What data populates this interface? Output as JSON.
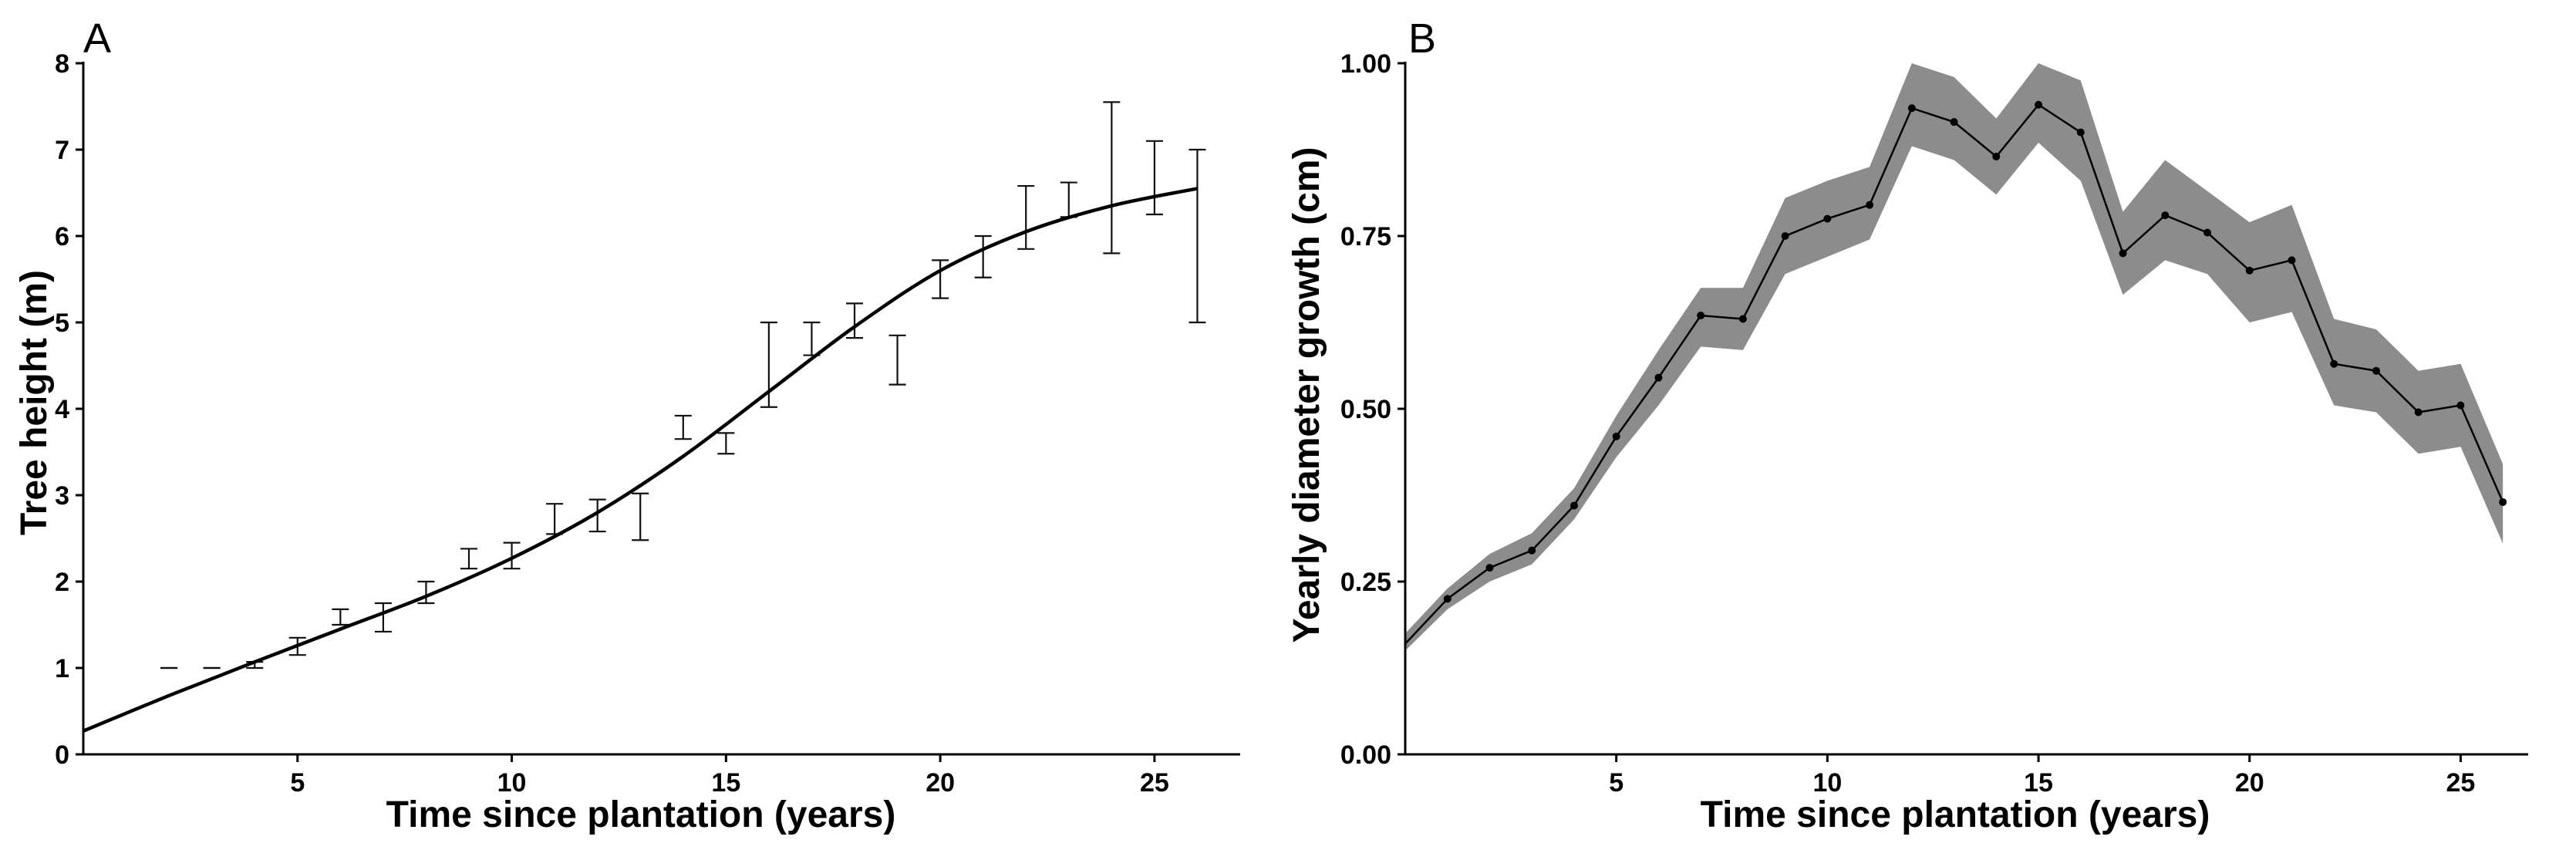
{
  "chart_data": [
    {
      "panel": "A",
      "type": "line",
      "xlabel": "Time since plantation (years)",
      "ylabel": "Tree height (m)",
      "xlim": [
        0,
        27
      ],
      "ylim": [
        0,
        8
      ],
      "xticks": [
        5,
        10,
        15,
        20,
        25
      ],
      "yticks": [
        0,
        1,
        2,
        3,
        4,
        5,
        6,
        7,
        8
      ],
      "grid": false,
      "fit_curve": {
        "name": "fitted height",
        "x": [
          0,
          2,
          4,
          6,
          8,
          10,
          12,
          14,
          16,
          18,
          20,
          22,
          24,
          26
        ],
        "y": [
          0.27,
          0.68,
          1.07,
          1.45,
          1.83,
          2.27,
          2.8,
          3.45,
          4.2,
          4.95,
          5.6,
          6.05,
          6.35,
          6.55
        ]
      },
      "error_bars": [
        {
          "x": 2,
          "low": 1.0,
          "high": 1.0
        },
        {
          "x": 3,
          "low": 1.0,
          "high": 1.0
        },
        {
          "x": 4,
          "low": 1.0,
          "high": 1.07
        },
        {
          "x": 5,
          "low": 1.15,
          "high": 1.35
        },
        {
          "x": 6,
          "low": 1.5,
          "high": 1.68
        },
        {
          "x": 7,
          "low": 1.42,
          "high": 1.75
        },
        {
          "x": 8,
          "low": 1.75,
          "high": 2.0
        },
        {
          "x": 9,
          "low": 2.15,
          "high": 2.38
        },
        {
          "x": 10,
          "low": 2.15,
          "high": 2.45
        },
        {
          "x": 11,
          "low": 2.55,
          "high": 2.9
        },
        {
          "x": 12,
          "low": 2.58,
          "high": 2.95
        },
        {
          "x": 13,
          "low": 2.48,
          "high": 3.02
        },
        {
          "x": 14,
          "low": 3.65,
          "high": 3.92
        },
        {
          "x": 15,
          "low": 3.48,
          "high": 3.72
        },
        {
          "x": 16,
          "low": 4.02,
          "high": 5.0
        },
        {
          "x": 17,
          "low": 4.62,
          "high": 5.0
        },
        {
          "x": 18,
          "low": 4.82,
          "high": 5.22
        },
        {
          "x": 19,
          "low": 4.28,
          "high": 4.85
        },
        {
          "x": 20,
          "low": 5.28,
          "high": 5.72
        },
        {
          "x": 21,
          "low": 5.52,
          "high": 6.0
        },
        {
          "x": 22,
          "low": 5.85,
          "high": 6.58
        },
        {
          "x": 23,
          "low": 6.22,
          "high": 6.62
        },
        {
          "x": 24,
          "low": 5.8,
          "high": 7.55
        },
        {
          "x": 25,
          "low": 6.25,
          "high": 7.1
        },
        {
          "x": 26,
          "low": 5.0,
          "high": 7.0
        }
      ]
    },
    {
      "panel": "B",
      "type": "line",
      "xlabel": "Time since plantation (years)",
      "ylabel": "Yearly diameter growth (cm)",
      "xlim": [
        0,
        26.6
      ],
      "ylim": [
        0,
        1.0
      ],
      "xticks": [
        5,
        10,
        15,
        20,
        25
      ],
      "yticks": [
        "0.00",
        "0.25",
        "0.50",
        "0.75",
        "1.00"
      ],
      "grid": false,
      "series": [
        {
          "name": "yearly diameter growth",
          "x": [
            0,
            1,
            2,
            3,
            4,
            5,
            6,
            7,
            8,
            9,
            10,
            11,
            12,
            13,
            14,
            15,
            16,
            17,
            18,
            19,
            20,
            21,
            22,
            23,
            24,
            25,
            26
          ],
          "y": [
            0.16,
            0.225,
            0.27,
            0.295,
            0.36,
            0.46,
            0.545,
            0.635,
            0.63,
            0.75,
            0.775,
            0.795,
            0.935,
            0.915,
            0.865,
            0.94,
            0.9,
            0.725,
            0.78,
            0.755,
            0.7,
            0.715,
            0.565,
            0.555,
            0.495,
            0.505,
            0.365
          ],
          "ci_low": [
            0.15,
            0.21,
            0.25,
            0.275,
            0.34,
            0.43,
            0.505,
            0.59,
            0.585,
            0.695,
            0.72,
            0.745,
            0.88,
            0.86,
            0.81,
            0.885,
            0.83,
            0.665,
            0.715,
            0.695,
            0.625,
            0.64,
            0.505,
            0.495,
            0.435,
            0.445,
            0.305
          ],
          "ci_high": [
            0.175,
            0.24,
            0.29,
            0.32,
            0.385,
            0.49,
            0.585,
            0.675,
            0.675,
            0.805,
            0.83,
            0.85,
            1.0,
            0.98,
            0.92,
            1.0,
            0.975,
            0.785,
            0.86,
            0.815,
            0.77,
            0.795,
            0.63,
            0.615,
            0.555,
            0.565,
            0.42
          ]
        }
      ]
    }
  ]
}
